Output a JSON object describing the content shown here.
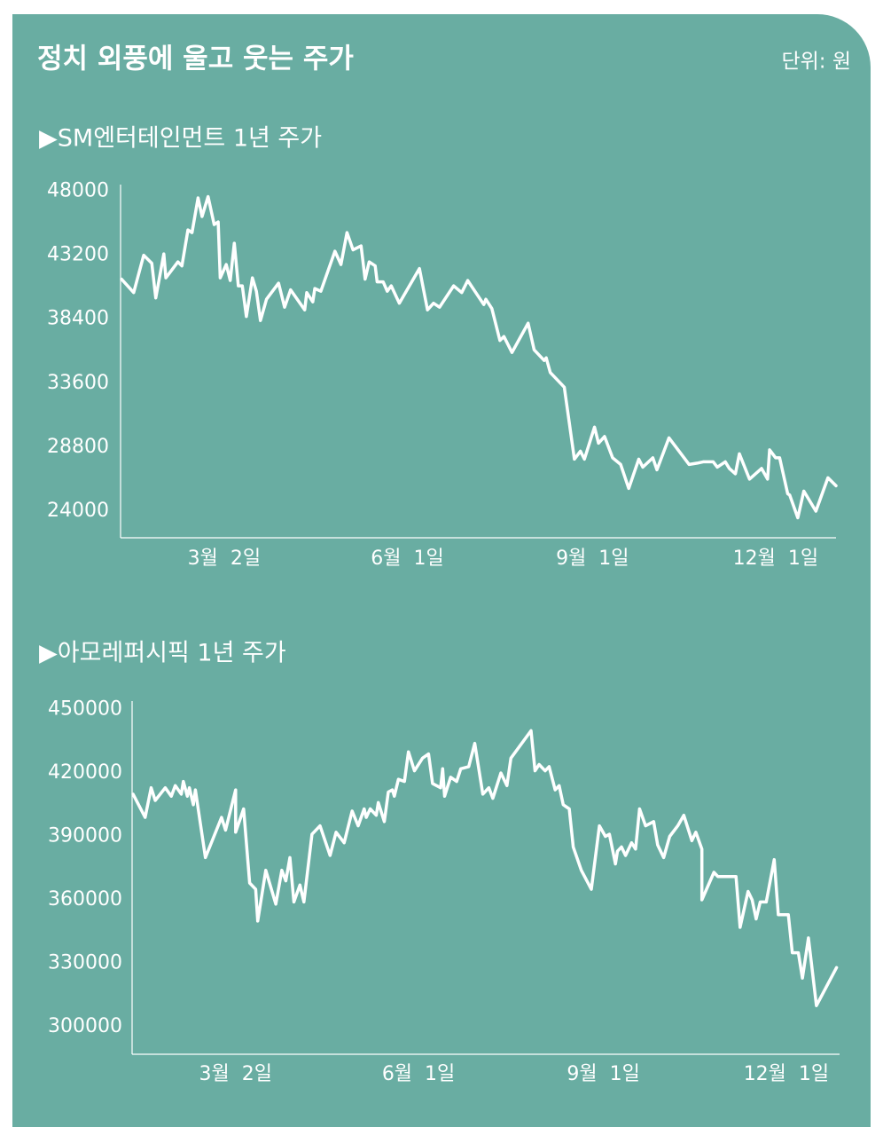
{
  "title": "정치 외풍에 울고 웃는 주가",
  "unit": "단위: 원",
  "chart_data": [
    {
      "type": "line",
      "title": "▶SM엔터테인먼트 1년 주가",
      "color": "#ffffff",
      "grid": false,
      "x": [
        10,
        16,
        21,
        25,
        27,
        31,
        32,
        38,
        40,
        43,
        45,
        48,
        50,
        53,
        56,
        58,
        59,
        62,
        64,
        66,
        68,
        70,
        72,
        75,
        77,
        79,
        82,
        88,
        91,
        94,
        101,
        102,
        105,
        106,
        109,
        116,
        119,
        122,
        125,
        129,
        131,
        133,
        136,
        137,
        140,
        142,
        144,
        148,
        158,
        162,
        165,
        168,
        175,
        179,
        182,
        190,
        191,
        194,
        198,
        200,
        204,
        212,
        215,
        220,
        221,
        223,
        230,
        235,
        238,
        240,
        245,
        247,
        250,
        254,
        258,
        262,
        267,
        269,
        274,
        276,
        282,
        292,
        296,
        299,
        304,
        306,
        310,
        312,
        315,
        317,
        322,
        328,
        331,
        332,
        335,
        337,
        341,
        342,
        346,
        349,
        355,
        361,
        365
      ],
      "values": [
        41400,
        40400,
        43200,
        42600,
        40000,
        43300,
        41500,
        42700,
        42400,
        45100,
        44900,
        47500,
        46100,
        47600,
        45500,
        45700,
        41500,
        42500,
        41300,
        44100,
        40900,
        40900,
        38600,
        41500,
        40500,
        38300,
        39900,
        41100,
        39300,
        40600,
        39100,
        40400,
        39700,
        40700,
        40500,
        43500,
        42500,
        44900,
        43600,
        43900,
        41400,
        42700,
        42400,
        41200,
        41200,
        40500,
        40900,
        39600,
        42200,
        39100,
        39600,
        39300,
        40900,
        40400,
        41300,
        39500,
        39900,
        39200,
        36800,
        37100,
        35900,
        38100,
        36100,
        35300,
        35500,
        34400,
        33300,
        27900,
        28500,
        27900,
        30300,
        29100,
        29600,
        28000,
        27500,
        25700,
        27900,
        27300,
        28000,
        27100,
        29500,
        27500,
        27600,
        27700,
        27700,
        27300,
        27700,
        27200,
        26800,
        28300,
        26400,
        27200,
        26400,
        28600,
        28000,
        28000,
        25300,
        25200,
        23500,
        25500,
        24000,
        26500,
        25900
      ],
      "xlim": [
        9.5,
        365
      ],
      "xticks": [
        {
          "value": 61,
          "label": "3월  2일"
        },
        {
          "value": 152,
          "label": "6월  1일"
        },
        {
          "value": 244,
          "label": "9월  1일"
        },
        {
          "value": 335,
          "label": "12월  1일"
        }
      ],
      "ylim": [
        22000,
        48500
      ],
      "yticks": [
        24000,
        28800,
        33600,
        38400,
        43200,
        48000
      ]
    },
    {
      "type": "line",
      "title": "▶아모레퍼시픽 1년 주가",
      "color": "#ffffff",
      "grid": false,
      "x": [
        10,
        16,
        19,
        21,
        26,
        29,
        31,
        34,
        35,
        37,
        38,
        40,
        41,
        46,
        54,
        56,
        61,
        61,
        65,
        68,
        71,
        72,
        76,
        81,
        84,
        86,
        88,
        90,
        93,
        95,
        99,
        103,
        108,
        111,
        115,
        119,
        122,
        125,
        126,
        128,
        131,
        132,
        135,
        137,
        139,
        140,
        142,
        145,
        147,
        150,
        154,
        157,
        159,
        163,
        164,
        165,
        168,
        171,
        173,
        177,
        180,
        184,
        187,
        189,
        193,
        196,
        198,
        208,
        210,
        212,
        215,
        217,
        220,
        222,
        224,
        227,
        229,
        233,
        238,
        242,
        245,
        247,
        250,
        251,
        253,
        255,
        258,
        260,
        262,
        265,
        269,
        271,
        274,
        277,
        281,
        284,
        288,
        290,
        293,
        293,
        299,
        301,
        310,
        312,
        316,
        318,
        320,
        322,
        325,
        329,
        331,
        336,
        338,
        341,
        343,
        346,
        350,
        360
      ],
      "values": [
        410000,
        399000,
        413000,
        407000,
        413000,
        409000,
        414000,
        410000,
        416000,
        409000,
        413000,
        405000,
        412000,
        380000,
        399000,
        393000,
        412000,
        392000,
        403000,
        368000,
        365000,
        350000,
        374000,
        358000,
        374000,
        369000,
        380000,
        359000,
        367000,
        359000,
        391000,
        395000,
        381000,
        392000,
        387000,
        402000,
        395000,
        403000,
        399000,
        403000,
        400000,
        406000,
        397000,
        411000,
        412000,
        409000,
        417000,
        416000,
        430000,
        421000,
        427000,
        429000,
        415000,
        413000,
        422000,
        409000,
        418000,
        416000,
        422000,
        423000,
        434000,
        410000,
        413000,
        408000,
        420000,
        414000,
        427000,
        440000,
        421000,
        424000,
        421000,
        423000,
        412000,
        414000,
        405000,
        403000,
        385000,
        374000,
        365000,
        395000,
        390000,
        391000,
        377000,
        383000,
        385000,
        381000,
        387000,
        384000,
        403000,
        395000,
        397000,
        386000,
        380000,
        390000,
        395000,
        400000,
        388000,
        392000,
        384000,
        360000,
        373000,
        371000,
        371000,
        347000,
        364000,
        360000,
        351000,
        359000,
        359000,
        379000,
        353000,
        353000,
        335000,
        335000,
        323000,
        342000,
        310000,
        328000
      ],
      "xlim": [
        9.5,
        361.5
      ],
      "xticks": [
        {
          "value": 61,
          "label": "3월  2일"
        },
        {
          "value": 152,
          "label": "6월  1일"
        },
        {
          "value": 244,
          "label": "9월  1일"
        },
        {
          "value": 335,
          "label": "12월  1일"
        }
      ],
      "ylim": [
        287000,
        454000
      ],
      "yticks": [
        300000,
        330000,
        360000,
        390000,
        420000,
        450000
      ]
    }
  ]
}
